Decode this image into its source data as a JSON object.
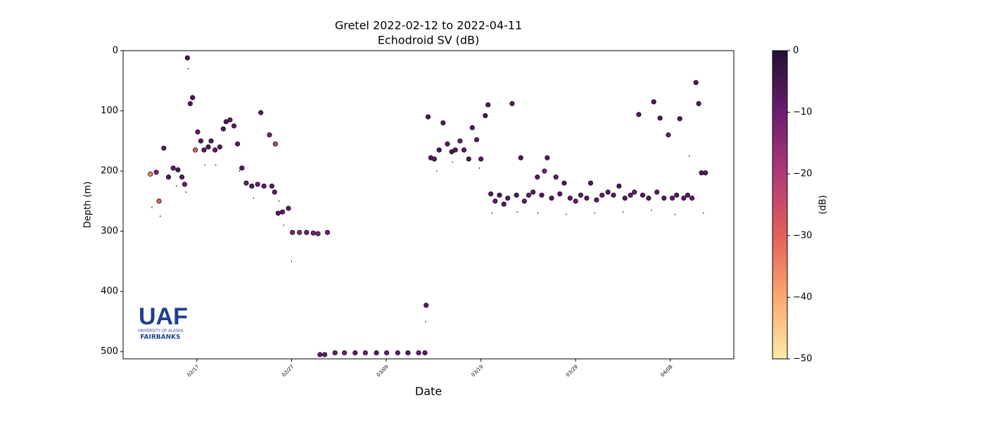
{
  "chart_data": {
    "type": "scatter",
    "title": "Gretel 2022-02-12 to 2022-04-11",
    "subtitle": "Echodroid SV (dB)",
    "x_label": "Date",
    "y_label": "Depth (m)",
    "colorbar_label": "(dB)",
    "xlim": [
      "2022-02-09T05:00",
      "2022-04-14T17:00"
    ],
    "xticks": [
      {
        "value": "2022-02-17T00:00",
        "label": "02/17"
      },
      {
        "value": "2022-02-27T00:00",
        "label": "02/27"
      },
      {
        "value": "2022-03-09T00:00",
        "label": "03/09"
      },
      {
        "value": "2022-03-19T00:00",
        "label": "03/19"
      },
      {
        "value": "2022-03-29T00:00",
        "label": "03/29"
      },
      {
        "value": "2022-04-08T00:00",
        "label": "04/08"
      }
    ],
    "ylim": [
      0,
      512
    ],
    "y_inverted": true,
    "yticks": [
      0,
      100,
      200,
      300,
      400,
      500
    ],
    "colormap": "magma_r",
    "clim": [
      -50,
      0
    ],
    "cticks": [
      {
        "value": 0,
        "label": "0"
      },
      {
        "value": -10,
        "label": "−10"
      },
      {
        "value": -20,
        "label": "−20"
      },
      {
        "value": -30,
        "label": "−30"
      },
      {
        "value": -40,
        "label": "−40"
      },
      {
        "value": -50,
        "label": "−50"
      }
    ],
    "points": {
      "x": [
        "2022-02-12T02:00",
        "2022-02-12T17:00",
        "2022-02-13T00:00",
        "2022-02-13T12:00",
        "2022-02-14T00:00",
        "2022-02-14T12:00",
        "2022-02-15T00:00",
        "2022-02-15T10:00",
        "2022-02-15T17:00",
        "2022-02-16T00:00",
        "2022-02-16T07:00",
        "2022-02-16T13:00",
        "2022-02-16T20:00",
        "2022-02-17T02:00",
        "2022-02-17T10:00",
        "2022-02-17T18:00",
        "2022-02-18T05:00",
        "2022-02-18T12:00",
        "2022-02-18T22:00",
        "2022-02-19T10:00",
        "2022-02-19T19:00",
        "2022-02-20T02:00",
        "2022-02-20T12:00",
        "2022-02-20T22:00",
        "2022-02-21T07:00",
        "2022-02-21T18:00",
        "2022-02-22T05:00",
        "2022-02-22T19:00",
        "2022-02-23T10:00",
        "2022-02-23T18:00",
        "2022-02-24T02:00",
        "2022-02-24T16:00",
        "2022-02-24T22:00",
        "2022-02-25T05:00",
        "2022-02-25T07:00",
        "2022-02-25T14:00",
        "2022-02-26T01:00",
        "2022-02-26T16:00",
        "2022-02-27T02:00",
        "2022-02-27T20:00",
        "2022-02-28T14:00",
        "2022-03-01T07:00",
        "2022-03-01T19:00",
        "2022-03-02T00:00",
        "2022-03-02T12:00",
        "2022-03-02T19:00",
        "2022-03-03T14:00",
        "2022-03-04T14:00",
        "2022-03-05T17:00",
        "2022-03-06T19:00",
        "2022-03-07T23:00",
        "2022-03-09T01:00",
        "2022-03-10T05:00",
        "2022-03-11T07:00",
        "2022-03-12T10:00",
        "2022-03-13T02:00",
        "2022-03-13T05:00",
        "2022-03-13T10:00",
        "2022-03-13T17:00",
        "2022-03-14T02:00",
        "2022-03-14T14:00",
        "2022-03-15T00:00",
        "2022-03-15T11:00",
        "2022-03-15T22:00",
        "2022-03-16T07:00",
        "2022-03-16T19:00",
        "2022-03-17T05:00",
        "2022-03-17T17:00",
        "2022-03-18T02:00",
        "2022-03-18T13:00",
        "2022-03-19T00:00",
        "2022-03-19T11:00",
        "2022-03-19T18:00",
        "2022-03-20T01:00",
        "2022-03-20T12:00",
        "2022-03-20T23:00",
        "2022-03-21T10:00",
        "2022-03-21T20:00",
        "2022-03-22T07:00",
        "2022-03-22T18:00",
        "2022-03-23T05:00",
        "2022-03-23T14:00",
        "2022-03-24T01:00",
        "2022-03-24T12:00",
        "2022-03-24T23:00",
        "2022-03-25T10:00",
        "2022-03-25T17:00",
        "2022-03-26T00:00",
        "2022-03-26T11:00",
        "2022-03-26T22:00",
        "2022-03-27T08:00",
        "2022-03-27T19:00",
        "2022-03-28T10:00",
        "2022-03-29T00:00",
        "2022-03-29T13:00",
        "2022-03-30T04:00",
        "2022-03-30T14:00",
        "2022-03-31T05:00",
        "2022-03-31T19:00",
        "2022-04-01T10:00",
        "2022-04-02T00:00",
        "2022-04-02T14:00",
        "2022-04-03T05:00",
        "2022-04-03T19:00",
        "2022-04-04T05:00",
        "2022-04-04T16:00",
        "2022-04-05T02:00",
        "2022-04-05T17:00",
        "2022-04-06T06:00",
        "2022-04-06T14:00",
        "2022-04-06T22:00",
        "2022-04-07T08:00",
        "2022-04-07T19:00",
        "2022-04-08T05:00",
        "2022-04-08T16:00",
        "2022-04-09T00:00",
        "2022-04-09T10:00",
        "2022-04-09T20:00",
        "2022-04-10T07:00",
        "2022-04-10T17:00",
        "2022-04-11T00:00",
        "2022-04-11T07:00",
        "2022-04-11T17:00"
      ],
      "y": [
        205,
        202,
        250,
        162,
        210,
        195,
        198,
        210,
        222,
        12,
        88,
        78,
        165,
        135,
        150,
        165,
        160,
        150,
        165,
        160,
        130,
        118,
        115,
        125,
        155,
        195,
        220,
        225,
        222,
        103,
        225,
        140,
        225,
        235,
        155,
        270,
        268,
        262,
        302,
        302,
        302,
        303,
        304,
        505,
        505,
        302,
        502,
        502,
        502,
        502,
        502,
        502,
        502,
        502,
        502,
        502,
        423,
        110,
        178,
        180,
        165,
        120,
        155,
        168,
        165,
        150,
        165,
        180,
        128,
        148,
        180,
        108,
        90,
        238,
        250,
        240,
        255,
        245,
        88,
        240,
        178,
        250,
        240,
        235,
        210,
        240,
        200,
        178,
        245,
        210,
        238,
        220,
        245,
        250,
        240,
        245,
        220,
        248,
        240,
        235,
        240,
        225,
        245,
        240,
        235,
        106,
        240,
        245,
        85,
        235,
        112,
        245,
        140,
        245,
        240,
        113,
        245,
        240,
        245,
        53,
        88,
        203,
        203
      ],
      "values": [
        -35,
        -12,
        -30,
        -8,
        -7,
        -9,
        -6,
        -8,
        -10,
        -5,
        -7,
        -6,
        -30,
        -9,
        -7,
        -8,
        -6,
        -7,
        -9,
        -8,
        -7,
        -6,
        -8,
        -9,
        -7,
        -8,
        -9,
        -7,
        -10,
        -8,
        -9,
        -12,
        -8,
        -9,
        -22,
        -7,
        -8,
        -9,
        -12,
        -14,
        -10,
        -12,
        -13,
        -8,
        -9,
        -11,
        -10,
        -12,
        -9,
        -11,
        -8,
        -10,
        -9,
        -8,
        -10,
        -9,
        -7,
        -6,
        -7,
        -8,
        -6,
        -7,
        -8,
        -6,
        -7,
        -9,
        -8,
        -6,
        -7,
        -8,
        -7,
        -6,
        -7,
        -8,
        -9,
        -6,
        -7,
        -8,
        -9,
        -7,
        -6,
        -8,
        -9,
        -7,
        -8,
        -7,
        -12,
        -8,
        -7,
        -9,
        -8,
        -6,
        -7,
        -9,
        -8,
        -7,
        -6,
        -8,
        -9,
        -7,
        -8,
        -6,
        -7,
        -8,
        -9,
        -7,
        -8,
        -6,
        -7,
        -8,
        -6,
        -7,
        -9,
        -8,
        -7,
        -6,
        -8,
        -7,
        -9,
        -6,
        -7,
        -8,
        -7
      ]
    },
    "dots": {
      "x": [
        "2022-02-12T06:00",
        "2022-02-13T03:00",
        "2022-02-14T20:00",
        "2022-02-15T20:00",
        "2022-02-16T02:00",
        "2022-02-17T20:00",
        "2022-02-19T00:00",
        "2022-02-21T12:00",
        "2022-02-23T00:00",
        "2022-02-25T16:00",
        "2022-02-26T04:00",
        "2022-02-27T00:00",
        "2022-03-01T10:00",
        "2022-03-13T04:00",
        "2022-03-14T08:00",
        "2022-03-16T00:00",
        "2022-03-18T20:00",
        "2022-03-20T04:00",
        "2022-03-22T20:00",
        "2022-03-25T00:00",
        "2022-03-28T00:00",
        "2022-03-31T00:00",
        "2022-04-03T00:00",
        "2022-04-06T00:00",
        "2022-04-08T12:00",
        "2022-04-10T00:00",
        "2022-04-11T12:00"
      ],
      "y": [
        260,
        275,
        225,
        235,
        30,
        190,
        190,
        200,
        245,
        250,
        290,
        350,
        305,
        450,
        200,
        185,
        195,
        270,
        268,
        270,
        272,
        270,
        268,
        265,
        272,
        175,
        270
      ]
    }
  }
}
